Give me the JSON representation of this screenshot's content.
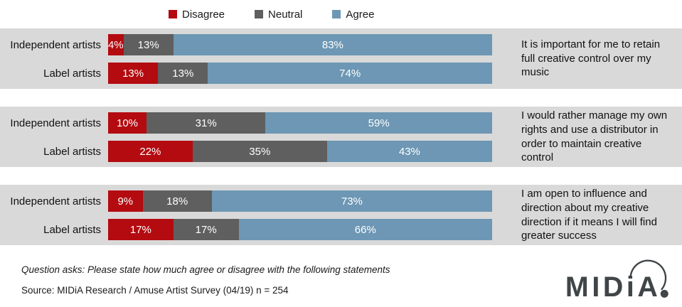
{
  "colors": {
    "disagree": "#b30b10",
    "neutral": "#5f5f5f",
    "agree": "#6d97b4",
    "band_bg": "#d9d9d9",
    "text": "#1a1a1a",
    "bar_label": "#ffffff",
    "logo": "#404548"
  },
  "legend": [
    {
      "key": "disagree",
      "label": "Disagree"
    },
    {
      "key": "neutral",
      "label": "Neutral"
    },
    {
      "key": "agree",
      "label": "Agree"
    }
  ],
  "chart_data": {
    "type": "bar",
    "orientation": "horizontal",
    "stacked": true,
    "unit": "percent",
    "xlim": [
      0,
      100
    ],
    "legend_position": "top",
    "series_names": [
      "Disagree",
      "Neutral",
      "Agree"
    ],
    "groups": [
      {
        "statement": "It is important for me to retain full creative control over my music",
        "rows": [
          {
            "label": "Independent artists",
            "disagree": 4,
            "neutral": 13,
            "agree": 83,
            "disagree_label": "4%",
            "neutral_label": "13%",
            "agree_label": "83%"
          },
          {
            "label": "Label artists",
            "disagree": 13,
            "neutral": 13,
            "agree": 74,
            "disagree_label": "13%",
            "neutral_label": "13%",
            "agree_label": "74%"
          }
        ]
      },
      {
        "statement": "I would rather manage my own rights and use a distributor in order to maintain creative control",
        "rows": [
          {
            "label": "Independent artists",
            "disagree": 10,
            "neutral": 31,
            "agree": 59,
            "disagree_label": "10%",
            "neutral_label": "31%",
            "agree_label": "59%"
          },
          {
            "label": "Label artists",
            "disagree": 22,
            "neutral": 35,
            "agree": 43,
            "disagree_label": "22%",
            "neutral_label": "35%",
            "agree_label": "43%"
          }
        ]
      },
      {
        "statement": "I am open to influence and direction about my creative direction if it means I will find greater success",
        "rows": [
          {
            "label": "Independent artists",
            "disagree": 9,
            "neutral": 18,
            "agree": 73,
            "disagree_label": "9%",
            "neutral_label": "18%",
            "agree_label": "73%"
          },
          {
            "label": "Label artists",
            "disagree": 17,
            "neutral": 17,
            "agree": 66,
            "disagree_label": "17%",
            "neutral_label": "17%",
            "agree_label": "66%"
          }
        ]
      }
    ]
  },
  "footer": {
    "question": "Question asks: Please state how much agree or disagree with the following statements",
    "source": "Source: MIDiA Research / Amuse Artist Survey (04/19) n = 254"
  },
  "logo": {
    "wordmark": "MIDiA",
    "period": "."
  }
}
